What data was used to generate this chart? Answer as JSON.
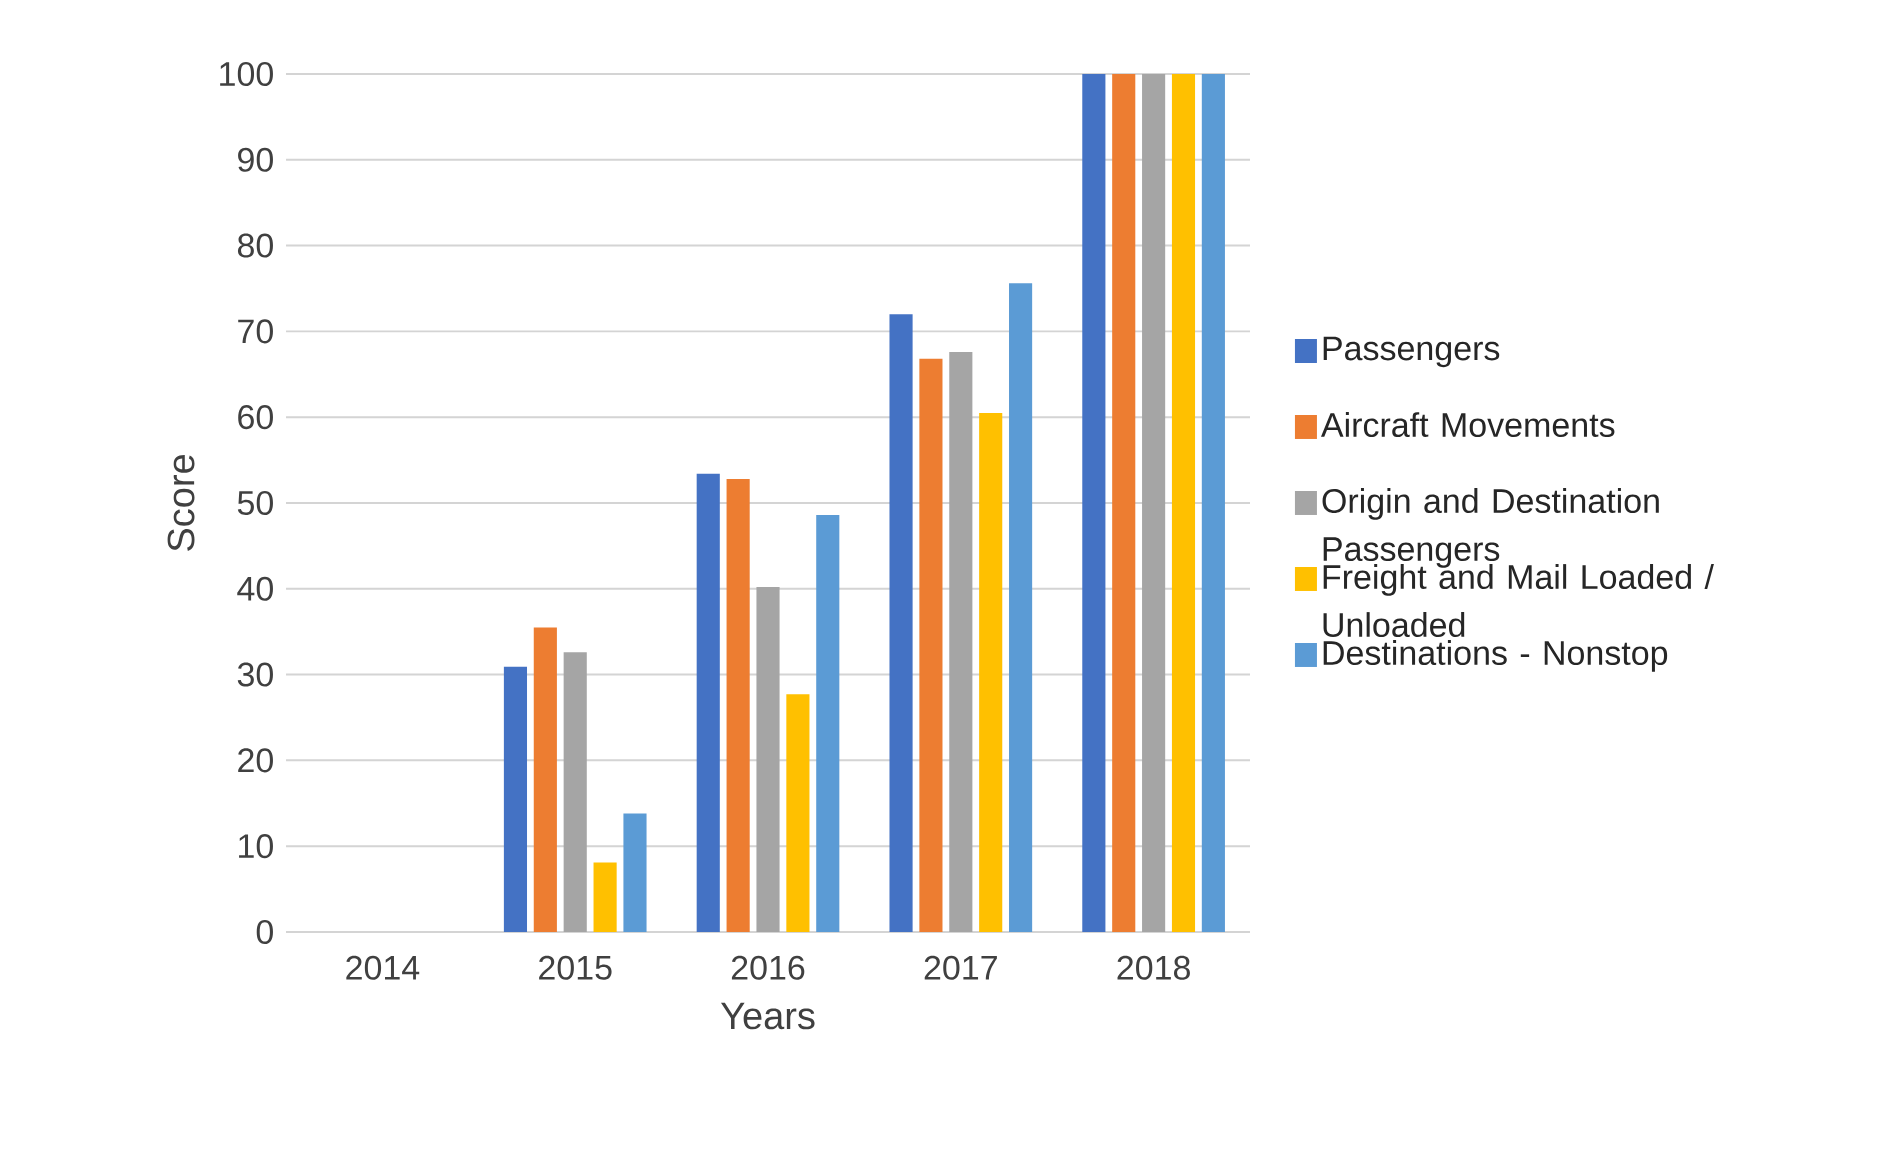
{
  "chart_data": {
    "type": "bar",
    "xlabel": "Years",
    "ylabel": "Score",
    "categories": [
      "2014",
      "2015",
      "2016",
      "2017",
      "2018"
    ],
    "series": [
      {
        "name": "Passengers",
        "color": "#4472c4",
        "values": [
          0,
          30.9,
          53.4,
          72.0,
          100
        ]
      },
      {
        "name": "Aircraft Movements",
        "color": "#ed7d31",
        "values": [
          0,
          35.5,
          52.8,
          66.8,
          100
        ]
      },
      {
        "name": "Origin and Destination Passengers",
        "color": "#a5a5a5",
        "values": [
          0,
          32.6,
          40.2,
          67.6,
          100
        ]
      },
      {
        "name": "Freight and Mail Loaded / Unloaded",
        "color": "#ffc000",
        "values": [
          0,
          8.1,
          27.7,
          60.5,
          100
        ]
      },
      {
        "name": "Destinations - Nonstop",
        "color": "#5b9bd5",
        "values": [
          0,
          13.8,
          48.6,
          75.6,
          100
        ]
      }
    ],
    "ylim": [
      0,
      100
    ],
    "yticks": [
      0,
      10,
      20,
      30,
      40,
      50,
      60,
      70,
      80,
      90,
      100
    ],
    "grid": "y",
    "legend": "right"
  }
}
